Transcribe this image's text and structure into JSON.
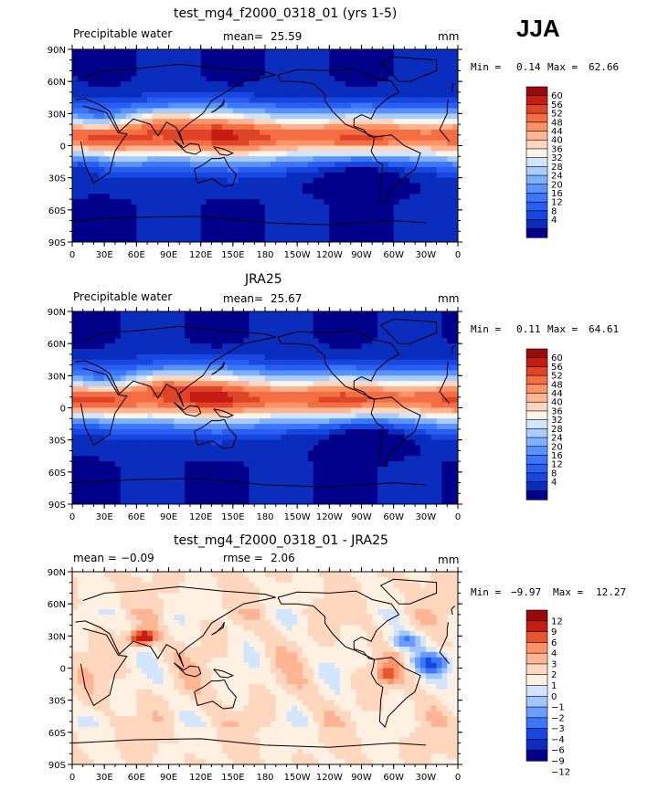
{
  "season": "JJA",
  "colors": {
    "abs": [
      "#00008b",
      "#0a2dbe",
      "#1846e0",
      "#2a5df2",
      "#3c77fb",
      "#5a92fc",
      "#7fb0ff",
      "#a9ccff",
      "#d2e5ff",
      "#fff4e8",
      "#ffd7bf",
      "#ffb593",
      "#ff9266",
      "#f46d43",
      "#e04428",
      "#c61d12",
      "#9a0a0a"
    ],
    "diff": [
      "#00008b",
      "#0a2dbe",
      "#1846e0",
      "#3c77fb",
      "#6a9cfd",
      "#a1c4fe",
      "#d2e5ff",
      "#fff0e2",
      "#ffd7bf",
      "#ffb593",
      "#ff9266",
      "#e85630",
      "#c61d12",
      "#9a0a0a"
    ]
  },
  "panels": [
    {
      "title": "test_mg4_f2000_0318_01 (yrs 1-5)",
      "left_label": "Precipitable water",
      "stat_label": "mean=",
      "stat_value": "25.59",
      "units": "mm",
      "min_label": "Min =",
      "min_value": "0.14",
      "max_label": "Max =",
      "max_value": "62.66",
      "colorbar_labels": [
        "60",
        "56",
        "52",
        "48",
        "44",
        "40",
        "36",
        "32",
        "28",
        "24",
        "20",
        "16",
        "12",
        "8",
        "4"
      ]
    },
    {
      "title": "JRA25",
      "left_label": "Precipitable water",
      "stat_label": "mean=",
      "stat_value": "25.67",
      "units": "mm",
      "min_label": "Min =",
      "min_value": "0.11",
      "max_label": "Max =",
      "max_value": "64.61",
      "colorbar_labels": [
        "60",
        "56",
        "52",
        "48",
        "44",
        "40",
        "36",
        "32",
        "28",
        "24",
        "20",
        "16",
        "12",
        "8",
        "4"
      ]
    },
    {
      "title": "test_mg4_f2000_0318_01 - JRA25",
      "left_label": "mean =",
      "left_value": "−0.09",
      "stat_label": "rmse =",
      "stat_value": "2.06",
      "units": "mm",
      "min_label": "Min =",
      "min_value": "−9.97",
      "max_label": "Max =",
      "max_value": "12.27",
      "colorbar_labels": [
        "12",
        "9",
        "6",
        "4",
        "3",
        "2",
        "1",
        "0",
        "−1",
        "−2",
        "−3",
        "−4",
        "−6",
        "−9",
        "−12"
      ]
    }
  ],
  "lat_ticks": [
    "90N",
    "60N",
    "30N",
    "0",
    "30S",
    "60S",
    "90S"
  ],
  "lon_ticks": [
    "0",
    "30E",
    "60E",
    "90E",
    "120E",
    "150E",
    "180",
    "150W",
    "120W",
    "90W",
    "60W",
    "30W",
    "0"
  ]
}
